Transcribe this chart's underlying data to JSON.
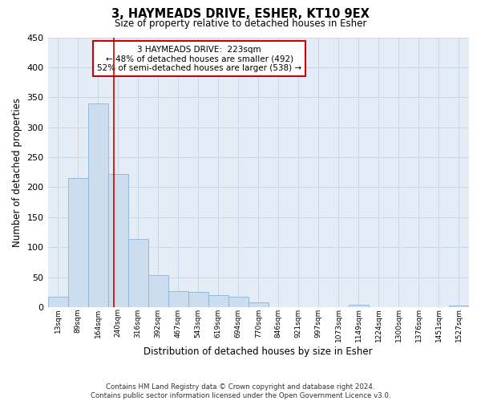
{
  "title": "3, HAYMEADS DRIVE, ESHER, KT10 9EX",
  "subtitle": "Size of property relative to detached houses in Esher",
  "bar_labels": [
    "13sqm",
    "89sqm",
    "164sqm",
    "240sqm",
    "316sqm",
    "392sqm",
    "467sqm",
    "543sqm",
    "619sqm",
    "694sqm",
    "770sqm",
    "846sqm",
    "921sqm",
    "997sqm",
    "1073sqm",
    "1149sqm",
    "1224sqm",
    "1300sqm",
    "1376sqm",
    "1451sqm",
    "1527sqm"
  ],
  "bar_values": [
    17,
    215,
    340,
    222,
    113,
    53,
    26,
    25,
    20,
    17,
    8,
    0,
    0,
    0,
    0,
    4,
    0,
    0,
    0,
    0,
    3
  ],
  "bar_color": "#ccddf0",
  "bar_edge_color": "#8ab4d8",
  "vline_color": "#cc0000",
  "vline_pos": 2.78,
  "xlabel": "Distribution of detached houses by size in Esher",
  "ylabel": "Number of detached properties",
  "ylim": [
    0,
    450
  ],
  "yticks": [
    0,
    50,
    100,
    150,
    200,
    250,
    300,
    350,
    400,
    450
  ],
  "annotation_title": "3 HAYMEADS DRIVE:  223sqm",
  "annotation_line1": "← 48% of detached houses are smaller (492)",
  "annotation_line2": "52% of semi-detached houses are larger (538) →",
  "annotation_box_color": "#cc0000",
  "grid_color": "#c8d8e8",
  "bg_color": "#e4ecf5",
  "footer1": "Contains HM Land Registry data © Crown copyright and database right 2024.",
  "footer2": "Contains public sector information licensed under the Open Government Licence v3.0."
}
